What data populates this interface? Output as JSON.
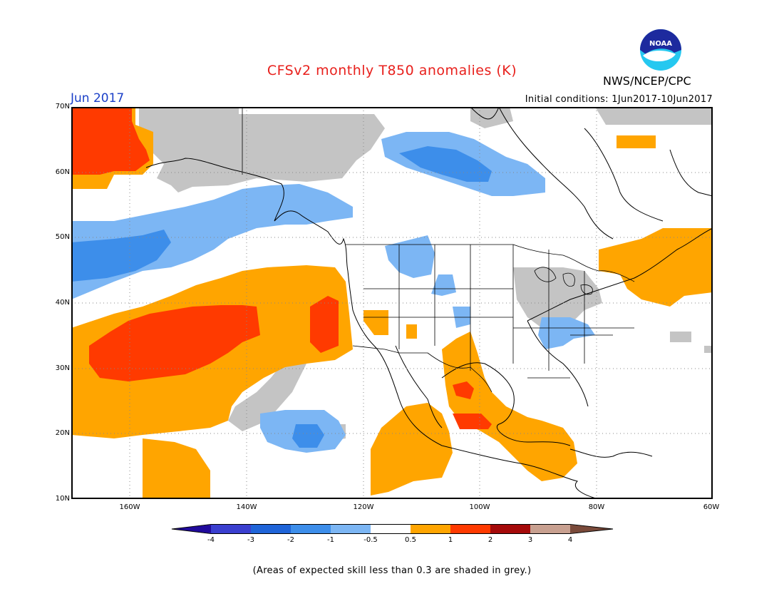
{
  "header": {
    "title": "CFSv2 monthly T850 anomalies (K)",
    "agency": "NWS/NCEP/CPC",
    "logo_text": "NOAA",
    "period": "Jun 2017",
    "initial_conditions": "Initial conditions: 1Jun2017-10Jun2017"
  },
  "map": {
    "lat_labels": [
      "70N",
      "60N",
      "50N",
      "40N",
      "30N",
      "20N",
      "10N"
    ],
    "lon_labels": [
      "160W",
      "140W",
      "120W",
      "100W",
      "80W",
      "60W"
    ]
  },
  "colorbar": {
    "labels": [
      "-4",
      "-3",
      "-2",
      "-1",
      "-0.5",
      "0.5",
      "1",
      "2",
      "3",
      "4"
    ],
    "colors": [
      "#200a9c",
      "#3a3fcf",
      "#1f64d8",
      "#3d8eea",
      "#7cb6f4",
      "#ffffff",
      "#ffa500",
      "#ff3a00",
      "#a50a0a",
      "#c8a090",
      "#7a4a3a"
    ]
  },
  "footer": {
    "skill_note": "(Areas of expected skill less than 0.3 are shaded in grey.)"
  },
  "colors": {
    "title": "#e8201c",
    "period": "#1a3fc8",
    "grey_low_skill": "#c4c4c4",
    "pos_0_5_1": "#ffa500",
    "pos_1_2": "#ff3a00",
    "neg_0_5_1": "#7cb6f4",
    "neg_1_2": "#3d8eea"
  }
}
